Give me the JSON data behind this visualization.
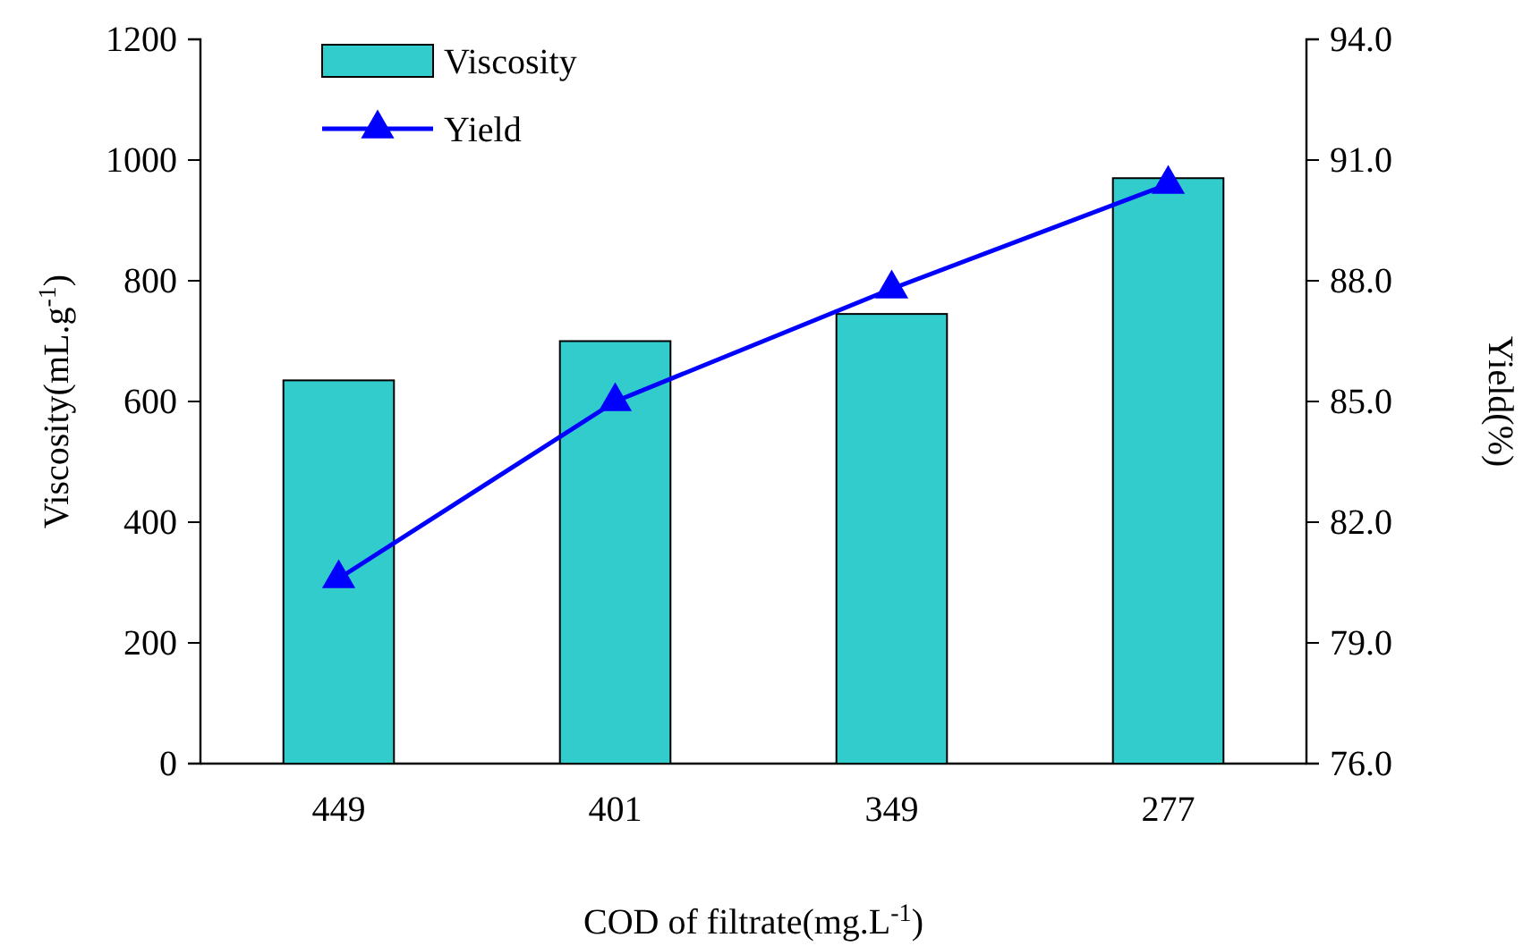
{
  "chart_data": {
    "type": "bar",
    "categories": [
      "449",
      "401",
      "349",
      "277"
    ],
    "series": [
      {
        "name": "Viscosity",
        "color": "#33cccc",
        "values": [
          635,
          700,
          745,
          970
        ]
      },
      {
        "name": "Yield",
        "type": "line",
        "axis": "y2",
        "color": "#0000ff",
        "marker": "triangle",
        "values": [
          80.6,
          85.0,
          87.8,
          90.4
        ]
      }
    ],
    "xlabel": "COD of filtrate(mg.L$^{-1}$)",
    "ylabel": "Viscosity(mL.g$^{-1}$)",
    "y2label": "Yield(%)",
    "ylim": [
      0,
      1200
    ],
    "yticks": [
      0,
      200,
      400,
      600,
      800,
      1000,
      1200
    ],
    "y2lim": [
      76,
      94
    ],
    "y2ticks": [
      {
        "value": 76,
        "label": "76.0"
      },
      {
        "value": 79,
        "label": "79.0"
      },
      {
        "value": 82,
        "label": "82.0"
      },
      {
        "value": 85,
        "label": "85.0"
      },
      {
        "value": 88,
        "label": "88.0"
      },
      {
        "value": 91,
        "label": "91.0"
      },
      {
        "value": 94,
        "label": "94.0"
      }
    ],
    "legend": "top left",
    "grid": false
  }
}
